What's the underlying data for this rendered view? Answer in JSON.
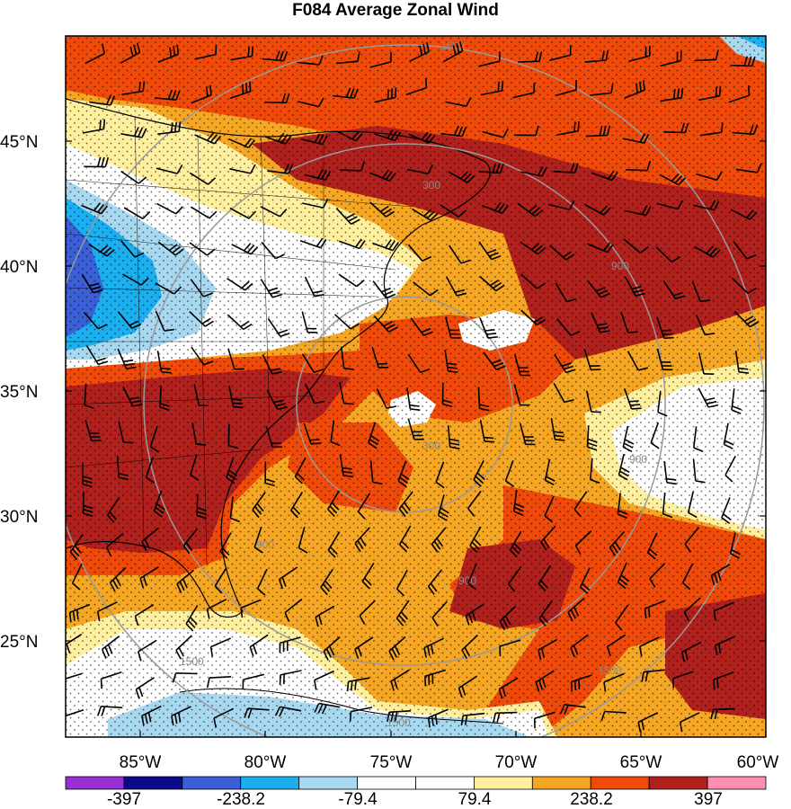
{
  "title": "F084 Average Zonal Wind",
  "map": {
    "lat_labels": [
      "45°N",
      "40°N",
      "35°N",
      "30°N",
      "25°N"
    ],
    "lon_labels": [
      "85°W",
      "80°W",
      "75°W",
      "70°W",
      "65°W",
      "60°W"
    ],
    "extent": {
      "lon_min": -88,
      "lon_max": -60,
      "lat_min": 21,
      "lat_max": 49
    },
    "ring_labels": [
      "1500",
      "900",
      "300",
      "900",
      "900",
      "1500",
      "1500",
      "1500",
      "900",
      "300"
    ]
  },
  "colorbar": {
    "colors": [
      "#9b2fd6",
      "#0a0a8a",
      "#3a5fd6",
      "#1ab0f0",
      "#a8d8f0",
      "#ffffff",
      "#ffffff",
      "#fff0a0",
      "#f5a623",
      "#f04a0a",
      "#b0201c",
      "#ff8fb0"
    ],
    "labels": [
      "-397",
      "-238.2",
      "-79.4",
      "79.4",
      "238.2",
      "397"
    ]
  }
}
